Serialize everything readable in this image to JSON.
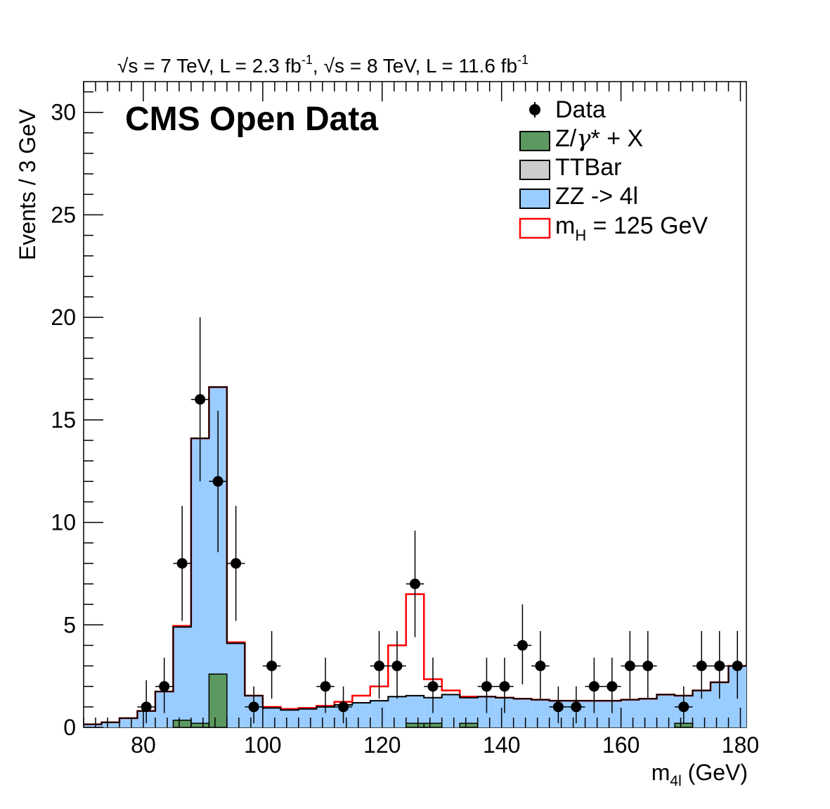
{
  "chart_data": {
    "type": "bar",
    "header_text": {
      "sqrt_sym": "√",
      "part1": "s = 7 TeV, L = 2.3 fb",
      "sup1": "-1",
      "comma": ",",
      "part2": "s = 8 TeV, L = 11.6 fb",
      "sup2": "-1"
    },
    "watermark": "CMS Open Data",
    "xlabel": {
      "main": "m",
      "sub": "4l",
      "unit": " (GeV)"
    },
    "ylabel": "Events / 3 GeV",
    "xlim": [
      70,
      181
    ],
    "ylim": [
      0,
      31.5
    ],
    "grid": false,
    "legend_position": "top-right",
    "x_ticks": [
      "80",
      "100",
      "120",
      "140",
      "160",
      "180"
    ],
    "y_ticks": [
      "0",
      "5",
      "10",
      "15",
      "20",
      "25",
      "30"
    ],
    "bin_edges": [
      70,
      73,
      76,
      79,
      82,
      85,
      88,
      91,
      94,
      97,
      100,
      103,
      106,
      109,
      112,
      115,
      118,
      121,
      124,
      127,
      130,
      133,
      136,
      139,
      142,
      145,
      148,
      151,
      154,
      157,
      160,
      163,
      166,
      169,
      172,
      175,
      178,
      181
    ],
    "series": [
      {
        "name": "Z/γ* + X",
        "legend_main": "Z/",
        "legend_gamma": "γ",
        "legend_rest": "* + X",
        "color": "#5c9960",
        "values": [
          0,
          0,
          0,
          0,
          0,
          0.35,
          0.2,
          2.6,
          0,
          0,
          0,
          0,
          0,
          0,
          0,
          0,
          0,
          0,
          0.2,
          0.2,
          0,
          0.2,
          0,
          0,
          0,
          0,
          0,
          0,
          0,
          0,
          0,
          0,
          0,
          0.2,
          0,
          0,
          0
        ]
      },
      {
        "name": "TTBar",
        "color": "#cccccc",
        "values": [
          0,
          0,
          0,
          0,
          0,
          0,
          0,
          0,
          0,
          0,
          0,
          0,
          0,
          0,
          0,
          0,
          0,
          0,
          0,
          0,
          0,
          0,
          0,
          0,
          0,
          0,
          0,
          0,
          0,
          0,
          0,
          0,
          0,
          0,
          0,
          0,
          0
        ]
      },
      {
        "name": "ZZ -> 4l",
        "color": "#99ccff",
        "stack_total": [
          0.15,
          0.25,
          0.45,
          0.8,
          1.75,
          4.9,
          14.1,
          16.6,
          4.1,
          1.55,
          0.95,
          0.85,
          0.9,
          1.0,
          1.1,
          1.2,
          1.3,
          1.5,
          1.55,
          1.45,
          1.6,
          1.45,
          1.5,
          1.45,
          1.4,
          1.35,
          1.3,
          1.3,
          1.3,
          1.3,
          1.35,
          1.4,
          1.6,
          1.55,
          1.8,
          2.2,
          3.0
        ]
      },
      {
        "name": "m_H = 125 GeV",
        "legend_main": "m",
        "legend_sub": "H",
        "legend_rest": " = 125 GeV",
        "color": "#ff0000",
        "stack_total": [
          0.15,
          0.25,
          0.45,
          0.8,
          1.75,
          4.95,
          14.1,
          16.6,
          4.15,
          1.55,
          1.0,
          0.9,
          0.95,
          1.05,
          1.25,
          1.55,
          2.0,
          4.0,
          6.5,
          2.35,
          1.8,
          1.5,
          1.5,
          1.45,
          1.4,
          1.35,
          1.3,
          1.3,
          1.3,
          1.3,
          1.35,
          1.4,
          1.6,
          1.55,
          1.8,
          2.2,
          3.0
        ]
      }
    ],
    "data_points": {
      "name": "Data",
      "x": [
        80.5,
        83.5,
        86.5,
        89.5,
        92.5,
        95.5,
        98.5,
        101.5,
        110.5,
        113.5,
        119.5,
        122.5,
        125.5,
        128.5,
        137.5,
        140.5,
        143.5,
        146.5,
        149.5,
        152.5,
        155.5,
        158.5,
        161.5,
        164.5,
        170.5,
        173.5,
        176.5,
        179.5
      ],
      "y": [
        1,
        2,
        8,
        16,
        12,
        8,
        1,
        3,
        2,
        1,
        3,
        3,
        7,
        2,
        2,
        2,
        4,
        3,
        1,
        1,
        2,
        2,
        3,
        3,
        1,
        3,
        3,
        3
      ],
      "err_up": [
        1.3,
        1.4,
        2.8,
        4.0,
        3.45,
        2.8,
        1.0,
        1.7,
        1.4,
        1.0,
        1.7,
        1.7,
        2.6,
        1.4,
        1.4,
        1.4,
        2.0,
        1.7,
        1.0,
        1.0,
        1.4,
        1.4,
        1.7,
        1.7,
        1.0,
        1.7,
        1.7,
        1.7
      ],
      "err_down": [
        0.8,
        1.3,
        2.8,
        4.0,
        3.45,
        2.8,
        0.8,
        1.6,
        1.3,
        0.8,
        1.6,
        1.6,
        2.6,
        1.3,
        1.3,
        1.3,
        1.9,
        1.6,
        0.8,
        0.8,
        1.3,
        1.3,
        1.6,
        1.6,
        0.8,
        1.6,
        1.6,
        1.6
      ],
      "x_err": 1.5
    }
  }
}
